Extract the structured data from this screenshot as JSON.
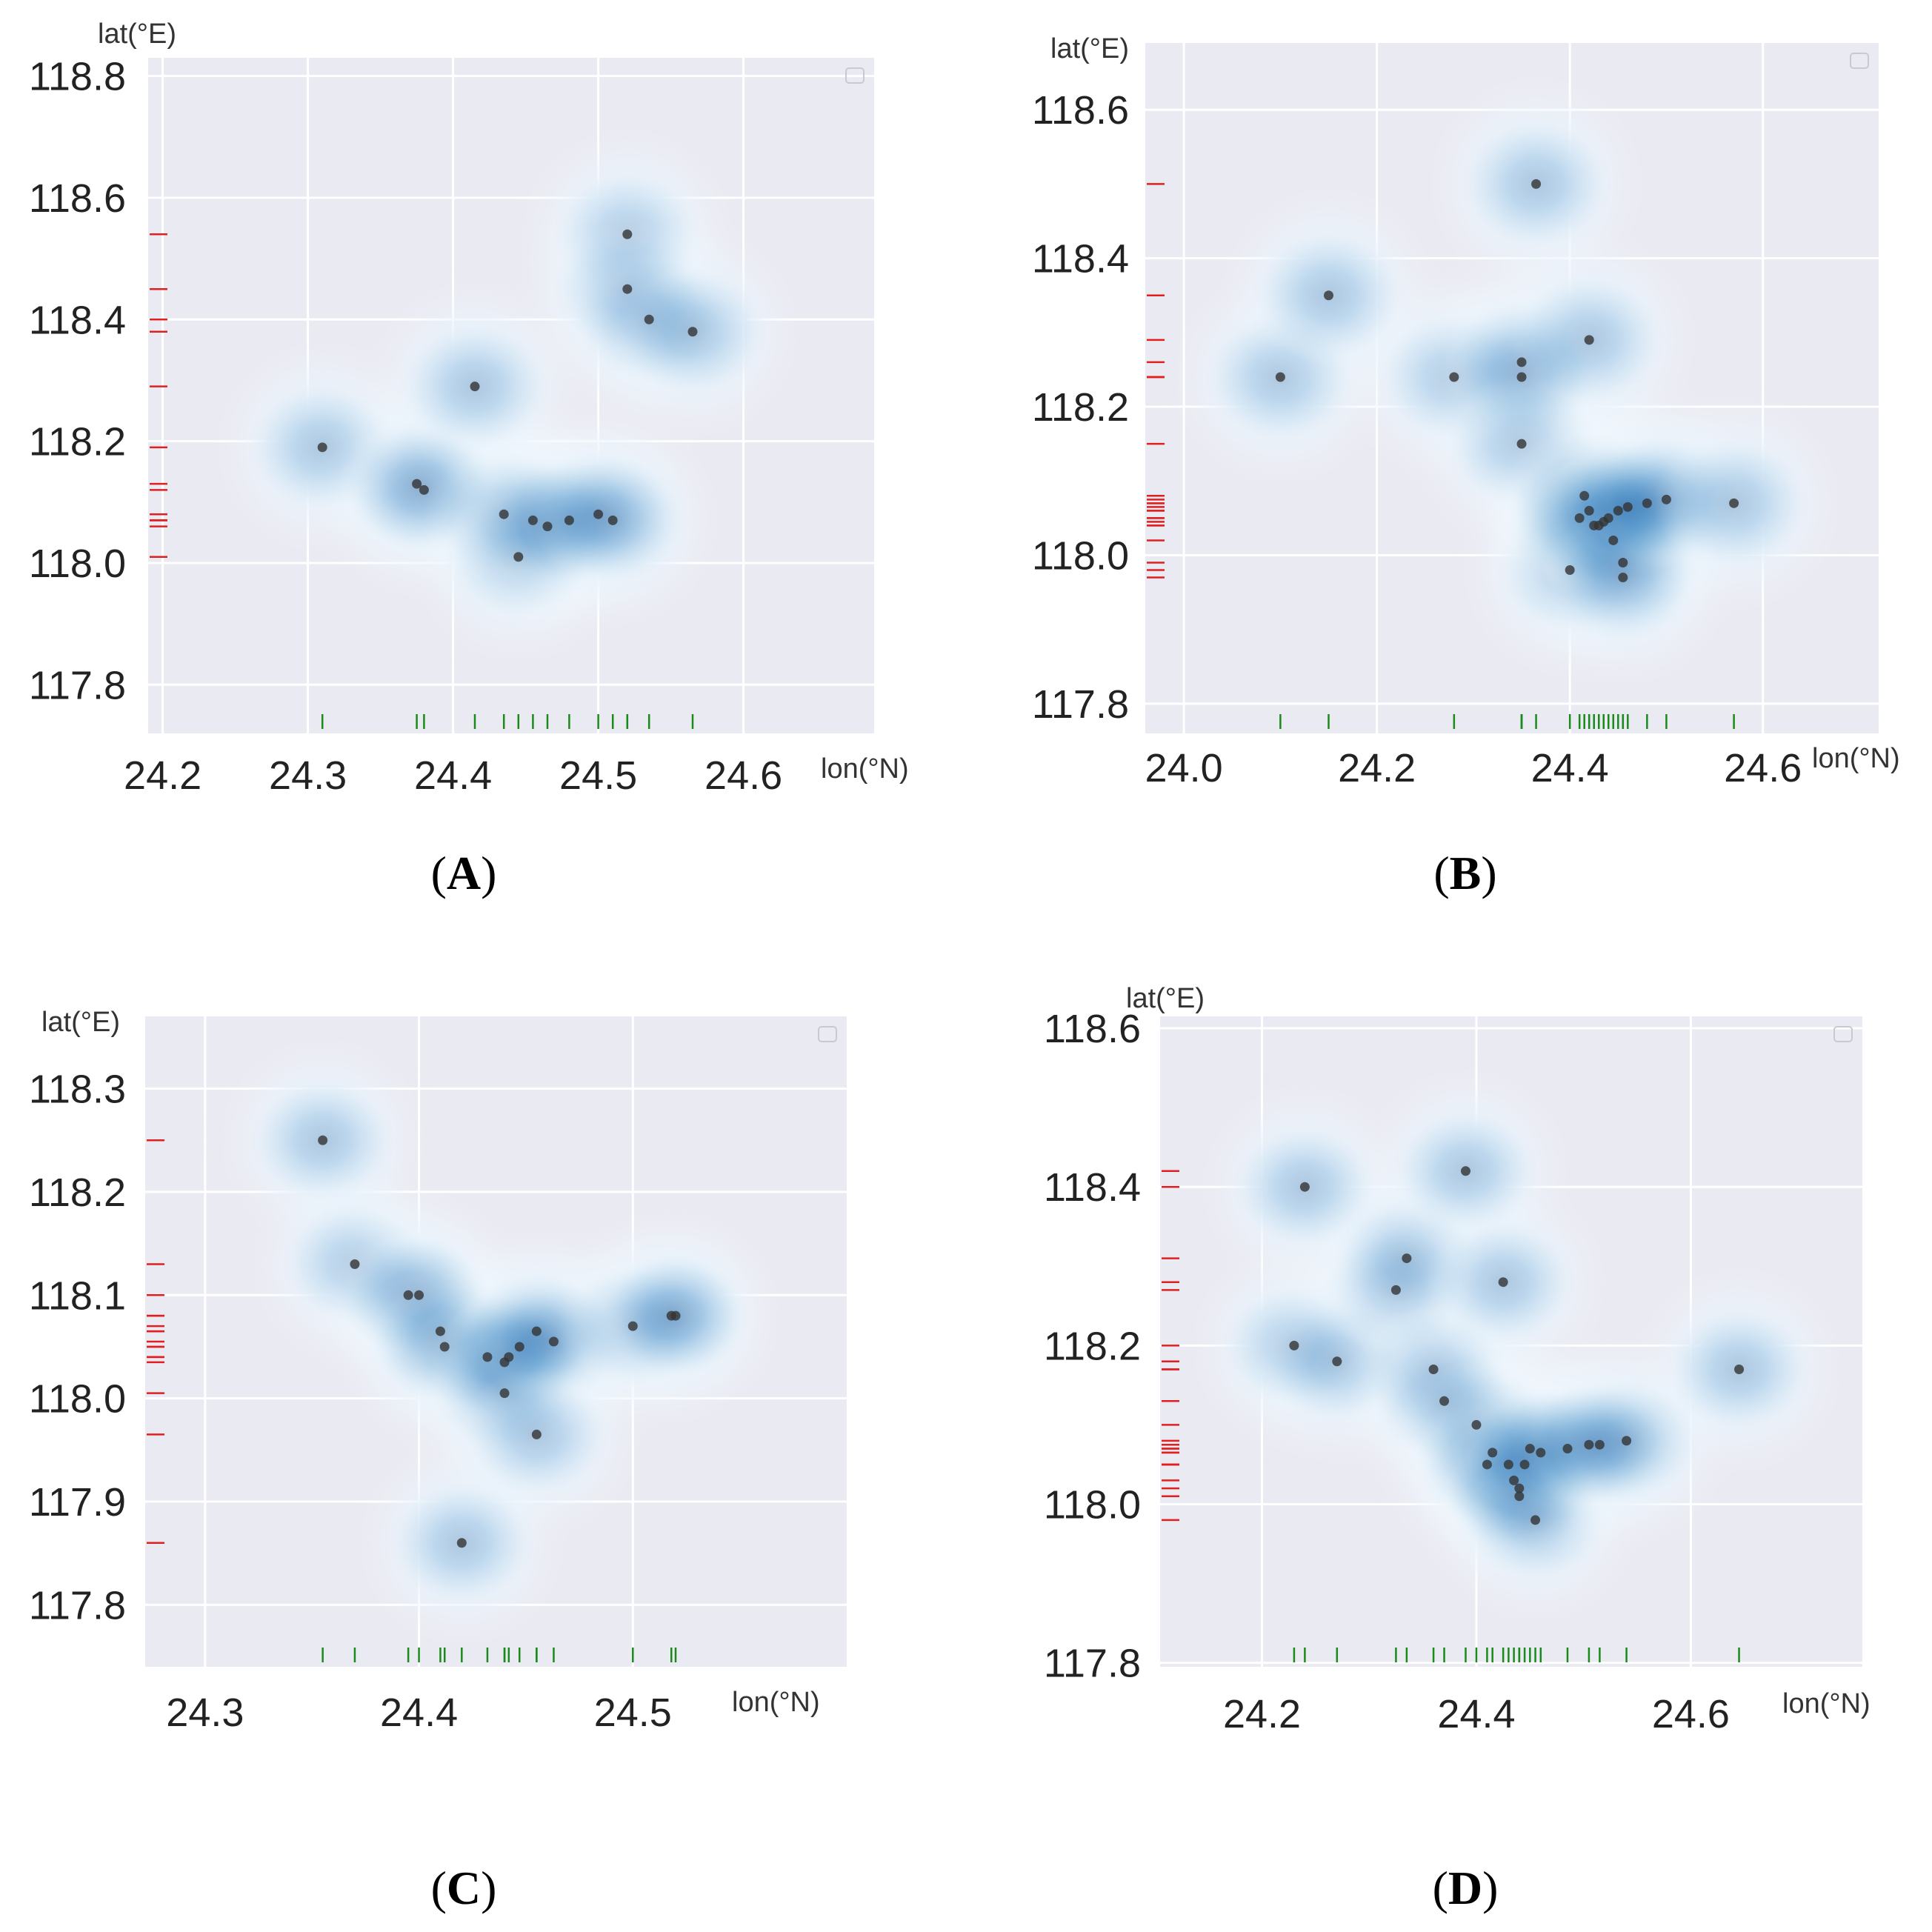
{
  "chart_data": [
    {
      "type": "scatter",
      "panel": "A",
      "caption": {
        "open": "(",
        "letter": "A",
        "close": ")"
      },
      "xlabel": "lon(°N)",
      "ylabel": "lat(°E)",
      "xlim": [
        24.19,
        24.69
      ],
      "ylim": [
        117.72,
        118.83
      ],
      "xticks": [
        "24.2",
        "24.3",
        "24.4",
        "24.5",
        "24.6"
      ],
      "yticks": [
        "117.8",
        "118.0",
        "118.2",
        "118.4",
        "118.6",
        "118.8"
      ],
      "grid": true,
      "legend": "top-right (empty)",
      "density": "kde-blue",
      "points": [
        [
          24.31,
          118.19
        ],
        [
          24.375,
          118.13
        ],
        [
          24.38,
          118.12
        ],
        [
          24.415,
          118.29
        ],
        [
          24.435,
          118.08
        ],
        [
          24.445,
          118.01
        ],
        [
          24.455,
          118.07
        ],
        [
          24.465,
          118.06
        ],
        [
          24.48,
          118.07
        ],
        [
          24.5,
          118.08
        ],
        [
          24.51,
          118.07
        ],
        [
          24.52,
          118.54
        ],
        [
          24.52,
          118.45
        ],
        [
          24.535,
          118.4
        ],
        [
          24.565,
          118.38
        ]
      ]
    },
    {
      "type": "scatter",
      "panel": "B",
      "caption": {
        "open": "(",
        "letter": "B",
        "close": ")"
      },
      "xlabel": "lon(°N)",
      "ylabel": "lat(°E)",
      "xlim": [
        23.96,
        24.72
      ],
      "ylim": [
        117.76,
        118.69
      ],
      "xticks": [
        "24.0",
        "24.2",
        "24.4",
        "24.6"
      ],
      "yticks": [
        "117.8",
        "118.0",
        "118.2",
        "118.4",
        "118.6"
      ],
      "grid": true,
      "legend": "top-right (empty)",
      "density": "kde-blue",
      "points": [
        [
          24.1,
          118.24
        ],
        [
          24.15,
          118.35
        ],
        [
          24.28,
          118.24
        ],
        [
          24.35,
          118.26
        ],
        [
          24.35,
          118.24
        ],
        [
          24.35,
          118.15
        ],
        [
          24.365,
          118.5
        ],
        [
          24.4,
          117.98
        ],
        [
          24.41,
          118.05
        ],
        [
          24.415,
          118.08
        ],
        [
          24.42,
          118.06
        ],
        [
          24.425,
          118.04
        ],
        [
          24.43,
          118.04
        ],
        [
          24.435,
          118.045
        ],
        [
          24.44,
          118.05
        ],
        [
          24.445,
          118.02
        ],
        [
          24.45,
          118.06
        ],
        [
          24.455,
          117.99
        ],
        [
          24.455,
          117.97
        ],
        [
          24.46,
          118.065
        ],
        [
          24.42,
          118.29
        ],
        [
          24.48,
          118.07
        ],
        [
          24.5,
          118.075
        ],
        [
          24.57,
          118.07
        ]
      ]
    },
    {
      "type": "scatter",
      "panel": "C",
      "caption": {
        "open": "(",
        "letter": "C",
        "close": ")"
      },
      "xlabel": "lon(°N)",
      "ylabel": "lat(°E)",
      "xlim": [
        24.272,
        24.6
      ],
      "ylim": [
        117.74,
        118.37
      ],
      "xticks": [
        "24.3",
        "24.4",
        "24.5"
      ],
      "yticks": [
        "117.8",
        "117.9",
        "118.0",
        "118.1",
        "118.2",
        "118.3"
      ],
      "grid": true,
      "legend": "top-right (empty)",
      "density": "kde-blue",
      "points": [
        [
          24.355,
          118.25
        ],
        [
          24.37,
          118.13
        ],
        [
          24.395,
          118.1
        ],
        [
          24.4,
          118.1
        ],
        [
          24.41,
          118.065
        ],
        [
          24.412,
          118.05
        ],
        [
          24.432,
          118.04
        ],
        [
          24.44,
          118.035
        ],
        [
          24.442,
          118.04
        ],
        [
          24.447,
          118.05
        ],
        [
          24.44,
          118.005
        ],
        [
          24.455,
          118.065
        ],
        [
          24.463,
          118.055
        ],
        [
          24.455,
          117.965
        ],
        [
          24.42,
          117.86
        ],
        [
          24.5,
          118.07
        ],
        [
          24.518,
          118.08
        ],
        [
          24.52,
          118.08
        ]
      ]
    },
    {
      "type": "scatter",
      "panel": "D",
      "caption": {
        "open": "(",
        "letter": "D",
        "close": ")"
      },
      "xlabel": "lon(°N)",
      "ylabel": "lat(°E)",
      "xlim": [
        24.105,
        24.76
      ],
      "ylim": [
        117.795,
        118.615
      ],
      "xticks": [
        "24.2",
        "24.4",
        "24.6"
      ],
      "yticks": [
        "117.8",
        "118.0",
        "118.2",
        "118.4",
        "118.6"
      ],
      "grid": true,
      "legend": "top-right (empty)",
      "density": "kde-blue",
      "points": [
        [
          24.23,
          118.2
        ],
        [
          24.24,
          118.4
        ],
        [
          24.27,
          118.18
        ],
        [
          24.325,
          118.27
        ],
        [
          24.335,
          118.31
        ],
        [
          24.36,
          118.17
        ],
        [
          24.37,
          118.13
        ],
        [
          24.39,
          118.42
        ],
        [
          24.4,
          118.1
        ],
        [
          24.41,
          118.05
        ],
        [
          24.415,
          118.065
        ],
        [
          24.425,
          118.28
        ],
        [
          24.43,
          118.05
        ],
        [
          24.435,
          118.03
        ],
        [
          24.44,
          118.02
        ],
        [
          24.44,
          118.01
        ],
        [
          24.445,
          118.05
        ],
        [
          24.45,
          118.07
        ],
        [
          24.455,
          117.98
        ],
        [
          24.46,
          118.065
        ],
        [
          24.485,
          118.07
        ],
        [
          24.505,
          118.075
        ],
        [
          24.515,
          118.075
        ],
        [
          24.54,
          118.08
        ],
        [
          24.645,
          118.17
        ]
      ]
    }
  ]
}
